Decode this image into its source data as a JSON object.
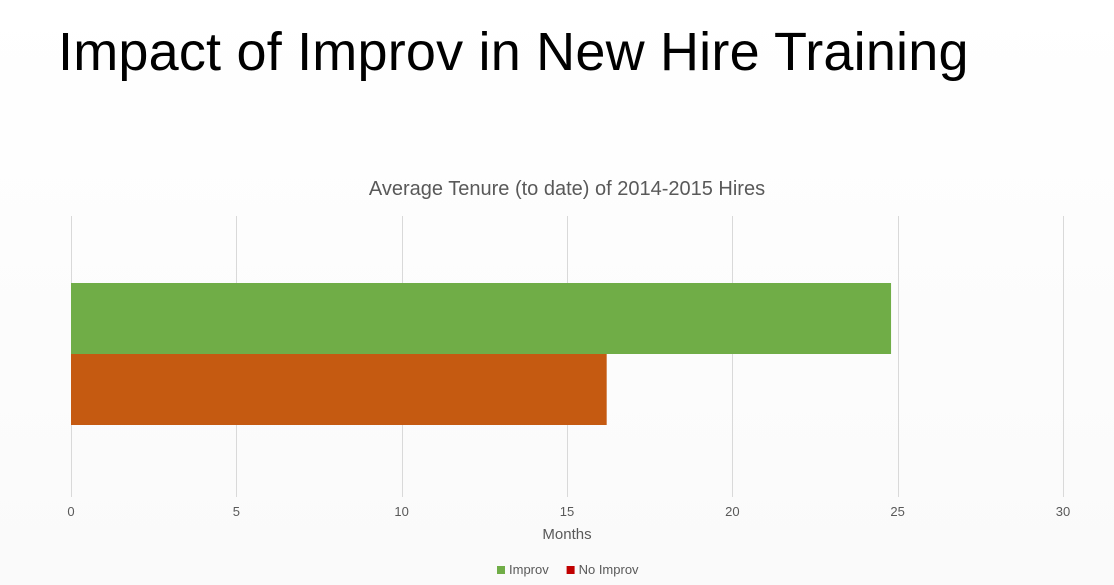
{
  "slide": {
    "title": "Impact of Improv in New Hire Training"
  },
  "chart_data": {
    "type": "bar",
    "orientation": "horizontal",
    "title": "Average Tenure (to date) of 2014-2015 Hires",
    "xlabel": "Months",
    "ylabel": "",
    "xlim": [
      0,
      30
    ],
    "xticks": [
      0,
      5,
      10,
      15,
      20,
      25,
      30
    ],
    "grid": true,
    "legend_position": "bottom",
    "categories": [
      ""
    ],
    "series": [
      {
        "name": "Improv",
        "values": [
          24.8
        ],
        "color": "#70ad47"
      },
      {
        "name": "No Improv",
        "values": [
          16.2
        ],
        "color": "#c55a11"
      }
    ],
    "legend_colors": [
      "#70ad47",
      "#c00000"
    ]
  }
}
